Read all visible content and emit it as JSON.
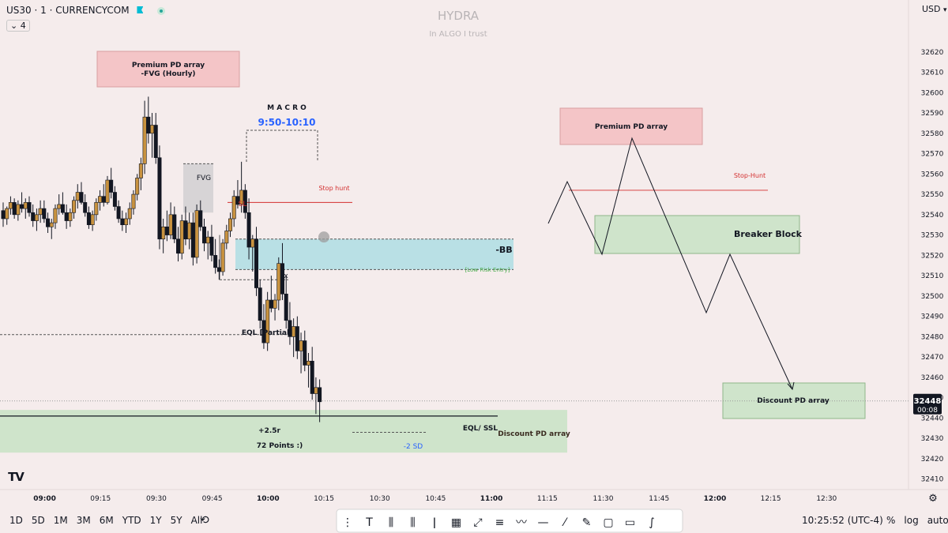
{
  "header": {
    "symbol": "US30 · 1 · CURRENCYCOM",
    "indicator_count": "4",
    "currency": "USD",
    "watermark_title": "HYDRA",
    "watermark_subtitle": "In ALGO I trust"
  },
  "colors": {
    "background": "#f5ecec",
    "bull_candle": "#c8923f",
    "bear_candle": "#131722",
    "premium_fill": "#f4c5c7",
    "discount_fill": "#cfe4cb",
    "bb_fill": "#b9e0e5",
    "fvg_fill": "#d7d4d6",
    "stop_hunt": "#d32f2f",
    "blue_text": "#2962ff",
    "green_text": "#4caf50"
  },
  "chart_data": {
    "type": "candlestick",
    "x_ticks": [
      "09:00",
      "09:15",
      "09:30",
      "09:45",
      "10:00",
      "10:15",
      "10:30",
      "10:45",
      "11:00",
      "11:15",
      "11:30",
      "11:45",
      "12:00",
      "12:15",
      "12:30"
    ],
    "y_ticks": [
      32410,
      32420,
      32430,
      32440,
      32450,
      32460,
      32470,
      32480,
      32490,
      32500,
      32510,
      32520,
      32530,
      32540,
      32550,
      32560,
      32570,
      32580,
      32590,
      32600,
      32610,
      32620
    ],
    "ylim": [
      32406,
      32630
    ],
    "x_range_minutes": [
      "08:48",
      "12:52"
    ],
    "current_price": "32448",
    "countdown": "00:08",
    "candles": [
      [
        32542,
        32546,
        32534,
        32538
      ],
      [
        32538,
        32544,
        32535,
        32543
      ],
      [
        32543,
        32549,
        32540,
        32546
      ],
      [
        32546,
        32548,
        32538,
        32540
      ],
      [
        32540,
        32547,
        32537,
        32545
      ],
      [
        32545,
        32551,
        32541,
        32543
      ],
      [
        32543,
        32548,
        32538,
        32546
      ],
      [
        32546,
        32549,
        32539,
        32541
      ],
      [
        32541,
        32545,
        32534,
        32537
      ],
      [
        32537,
        32543,
        32532,
        32540
      ],
      [
        32540,
        32547,
        32536,
        32543
      ],
      [
        32543,
        32547,
        32536,
        32538
      ],
      [
        32538,
        32541,
        32531,
        32534
      ],
      [
        32534,
        32538,
        32528,
        32536
      ],
      [
        32536,
        32545,
        32533,
        32543
      ],
      [
        32543,
        32550,
        32540,
        32545
      ],
      [
        32545,
        32551,
        32540,
        32541
      ],
      [
        32541,
        32545,
        32533,
        32537
      ],
      [
        32537,
        32543,
        32534,
        32541
      ],
      [
        32541,
        32549,
        32538,
        32547
      ],
      [
        32547,
        32555,
        32543,
        32551
      ],
      [
        32551,
        32556,
        32545,
        32546
      ],
      [
        32546,
        32550,
        32539,
        32541
      ],
      [
        32541,
        32544,
        32533,
        32535
      ],
      [
        32535,
        32542,
        32532,
        32540
      ],
      [
        32540,
        32548,
        32537,
        32546
      ],
      [
        32546,
        32552,
        32542,
        32549
      ],
      [
        32549,
        32555,
        32544,
        32546
      ],
      [
        32546,
        32559,
        32545,
        32557
      ],
      [
        32557,
        32563,
        32548,
        32551
      ],
      [
        32551,
        32554,
        32542,
        32544
      ],
      [
        32544,
        32547,
        32536,
        32538
      ],
      [
        32538,
        32542,
        32532,
        32535
      ],
      [
        32535,
        32541,
        32531,
        32538
      ],
      [
        32538,
        32546,
        32535,
        32543
      ],
      [
        32543,
        32552,
        32540,
        32550
      ],
      [
        32550,
        32560,
        32547,
        32558
      ],
      [
        32558,
        32568,
        32552,
        32565
      ],
      [
        32565,
        32596,
        32560,
        32588
      ],
      [
        32588,
        32598,
        32575,
        32580
      ],
      [
        32580,
        32590,
        32568,
        32584
      ],
      [
        32584,
        32590,
        32565,
        32568
      ],
      [
        32568,
        32574,
        32523,
        32528
      ],
      [
        32528,
        32538,
        32521,
        32534
      ],
      [
        32534,
        32542,
        32527,
        32530
      ],
      [
        32530,
        32546,
        32528,
        32540
      ],
      [
        32540,
        32544,
        32526,
        32528
      ],
      [
        32528,
        32534,
        32517,
        32521
      ],
      [
        32521,
        32540,
        32518,
        32537
      ],
      [
        32537,
        32544,
        32525,
        32528
      ],
      [
        32528,
        32541,
        32523,
        32536
      ],
      [
        32536,
        32541,
        32515,
        32519
      ],
      [
        32519,
        32545,
        32516,
        32542
      ],
      [
        32542,
        32547,
        32532,
        32534
      ],
      [
        32534,
        32538,
        32522,
        32526
      ],
      [
        32526,
        32532,
        32518,
        32529
      ],
      [
        32529,
        32535,
        32517,
        32520
      ],
      [
        32520,
        32528,
        32511,
        32514
      ],
      [
        32514,
        32518,
        32508,
        32512
      ],
      [
        32512,
        32528,
        32510,
        32526
      ],
      [
        32526,
        32535,
        32523,
        32532
      ],
      [
        32532,
        32541,
        32529,
        32538
      ],
      [
        32538,
        32552,
        32534,
        32549
      ],
      [
        32549,
        32557,
        32543,
        32545
      ],
      [
        32545,
        32566,
        32541,
        32552
      ],
      [
        32552,
        32555,
        32538,
        32541
      ],
      [
        32541,
        32548,
        32518,
        32524
      ],
      [
        32524,
        32530,
        32512,
        32528
      ],
      [
        32528,
        32534,
        32500,
        32504
      ],
      [
        32504,
        32508,
        32484,
        32488
      ],
      [
        32488,
        32496,
        32474,
        32477
      ],
      [
        32477,
        32502,
        32473,
        32498
      ],
      [
        32498,
        32510,
        32492,
        32494
      ],
      [
        32494,
        32501,
        32488,
        32498
      ],
      [
        32498,
        32519,
        32493,
        32516
      ],
      [
        32516,
        32526,
        32498,
        32501
      ],
      [
        32501,
        32510,
        32484,
        32488
      ],
      [
        32488,
        32497,
        32476,
        32480
      ],
      [
        32480,
        32489,
        32470,
        32485
      ],
      [
        32485,
        32490,
        32469,
        32473
      ],
      [
        32473,
        32482,
        32462,
        32478
      ],
      [
        32478,
        32483,
        32463,
        32466
      ],
      [
        32466,
        32472,
        32455,
        32468
      ],
      [
        32468,
        32475,
        32449,
        32452
      ],
      [
        32452,
        32460,
        32442,
        32455
      ],
      [
        32455,
        32459,
        32438,
        32448
      ]
    ]
  },
  "annotations": {
    "premium_fvg": "Premium PD array\n-FVG (Hourly)",
    "macro": "M A C R O",
    "macro_time": "9:50-10:10",
    "fvg": "FVG",
    "sl": "SL",
    "stop_hunt": "Stop hunt",
    "bb": "-BB",
    "low_risk": "[Low Risk Entry]",
    "x_mark": "x",
    "eql_partial": "EQL [Partial]",
    "r_multiple": "+2.5r",
    "points": "72 Points :)",
    "eql_ssl": "EQL/ SSL",
    "discount_left": "Discount PD array",
    "minus2sd": "-2 SD",
    "premium_right": "Premium PD array",
    "stop_hunt_right": "Stop-Hunt",
    "breaker_block": "Breaker Block",
    "discount_right": "Discount PD array"
  },
  "toolbar": {
    "timeframes": [
      "1D",
      "5D",
      "1M",
      "3M",
      "6M",
      "YTD",
      "1Y",
      "5Y",
      "All"
    ],
    "time": "10:25:52 (UTC-4)",
    "percent": "%",
    "log": "log",
    "auto": "auto"
  }
}
